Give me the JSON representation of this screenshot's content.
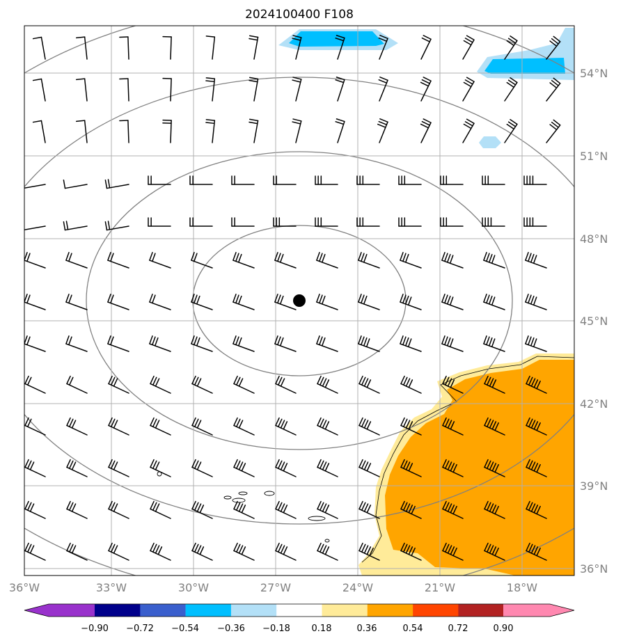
{
  "map": {
    "title": "2024100400 F108",
    "lon_labels": [
      "36°W",
      "33°W",
      "30°W",
      "27°W",
      "24°W",
      "21°W",
      "18°W"
    ],
    "lat_labels": [
      "54°N",
      "51°N",
      "48°N",
      "45°N",
      "42°N",
      "39°N",
      "36°N"
    ],
    "colors": {
      "neg_light": "#b3e0f7",
      "neg_mid": "#00bfff",
      "pos_light": "#ffeb99",
      "pos_mid": "#ffa500",
      "grid": "#b0b0b0",
      "circles": "#808080",
      "storm_center": "#000000"
    }
  },
  "colorbar": {
    "colors": [
      "#9932cc",
      "#00008b",
      "#3a5fcd",
      "#00bfff",
      "#b3e0f7",
      "#ffffff",
      "#ffeb99",
      "#ffa500",
      "#ff4500",
      "#b22222",
      "#ff88b0"
    ],
    "tick_labels": [
      "−0.90",
      "−0.72",
      "−0.54",
      "−0.36",
      "−0.18",
      "0.18",
      "0.36",
      "0.54",
      "0.72",
      "0.90"
    ]
  }
}
